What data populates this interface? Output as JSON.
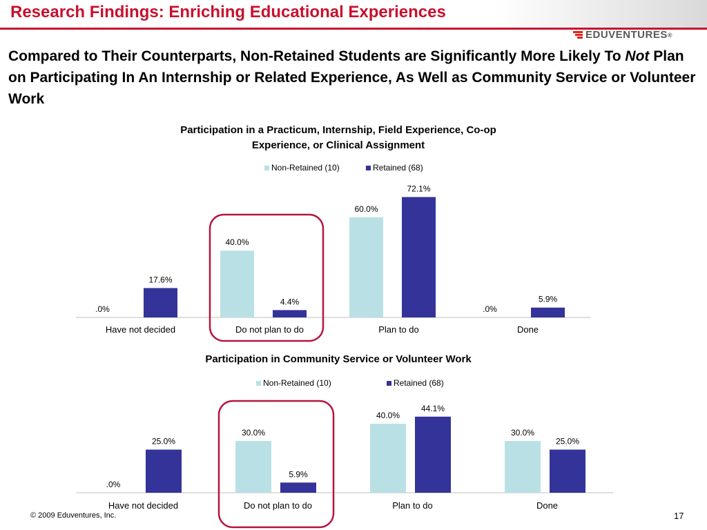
{
  "header": {
    "title": "Research Findings: Enriching Educational Experiences",
    "brand": "EDUVENTURES"
  },
  "subtitle": {
    "part1": "Compared to Their Counterparts, Non-Retained Students are Significantly More Likely To ",
    "emph": "Not",
    "part2": " Plan on Participating In An Internship or Related Experience, As Well as Community Service or Volunteer Work"
  },
  "colors": {
    "accent": "#c8102e",
    "non_retained": "#b9e1e5",
    "retained": "#333399",
    "highlight_box": "#b3163d"
  },
  "chart_data": [
    {
      "type": "bar",
      "title_lines": [
        "Participation in a Practicum, Internship, Field Experience, Co-op",
        "Experience, or Clinical Assignment"
      ],
      "categories": [
        "Have not decided",
        "Do not plan to do",
        "Plan to do",
        "Done"
      ],
      "series": [
        {
          "name": "Non-Retained (10)",
          "values": [
            0.0,
            40.0,
            60.0,
            0.0
          ],
          "labels": [
            ".0%",
            "40.0%",
            "60.0%",
            ".0%"
          ]
        },
        {
          "name": "Retained (68)",
          "values": [
            17.6,
            4.4,
            72.1,
            5.9
          ],
          "labels": [
            "17.6%",
            "4.4%",
            "72.1%",
            "5.9%"
          ]
        }
      ],
      "legend": "top-center",
      "highlighted_category": "Do not plan to do"
    },
    {
      "type": "bar",
      "title_lines": [
        "Participation in Community Service or Volunteer Work"
      ],
      "categories": [
        "Have not decided",
        "Do not plan to do",
        "Plan to do",
        "Done"
      ],
      "series": [
        {
          "name": "Non-Retained (10)",
          "values": [
            0.0,
            30.0,
            40.0,
            30.0
          ],
          "labels": [
            ".0%",
            "30.0%",
            "40.0%",
            "30.0%"
          ]
        },
        {
          "name": "Retained (68)",
          "values": [
            25.0,
            5.9,
            44.1,
            25.0
          ],
          "labels": [
            "25.0%",
            "5.9%",
            "44.1%",
            "25.0%"
          ]
        }
      ],
      "legend": "top-center",
      "highlighted_category": "Do not plan to do"
    }
  ],
  "footer": {
    "copyright": "© 2009 Eduventures, Inc.",
    "page_number": "17"
  }
}
